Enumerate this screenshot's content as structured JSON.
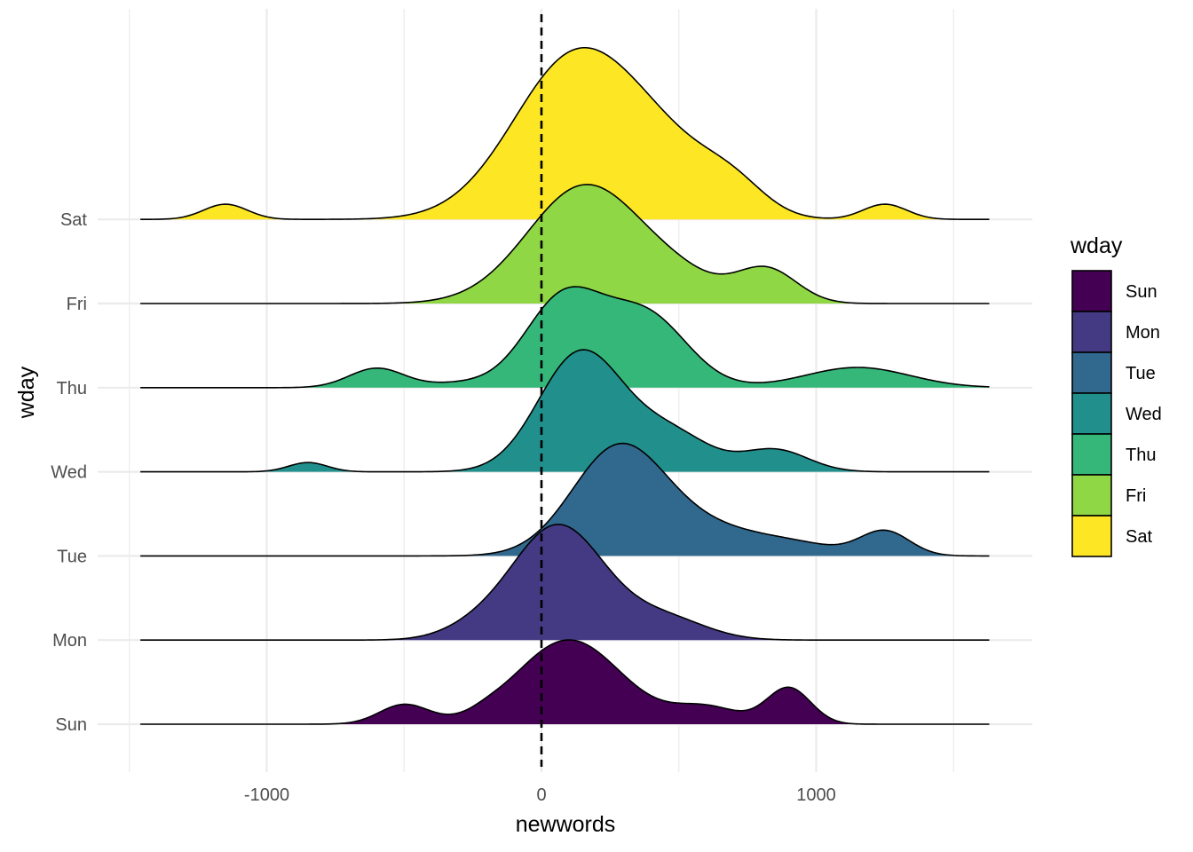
{
  "chart_data": {
    "type": "ridgeline",
    "title": "",
    "xlabel": "newwords",
    "ylabel": "wday",
    "xlim": [
      -1500,
      1600
    ],
    "x_ticks": [
      -1000,
      0,
      1000
    ],
    "x_tick_labels": [
      "-1000",
      "0",
      "1000"
    ],
    "reference_line": {
      "x": 0,
      "style": "dashed"
    },
    "legend": {
      "title": "wday",
      "position": "right"
    },
    "density_x_range": [
      -1460,
      1630
    ],
    "grid": true,
    "series": [
      {
        "name": "Sun",
        "color": "#440154",
        "peaks": [
          [
            -500,
            0.23,
            90
          ],
          [
            -200,
            0.03,
            60
          ],
          [
            100,
            1.0,
            190
          ],
          [
            600,
            0.2,
            120
          ],
          [
            900,
            0.43,
            80
          ]
        ]
      },
      {
        "name": "Mon",
        "color": "#443A83",
        "peaks": [
          [
            -250,
            0.1,
            120
          ],
          [
            60,
            1.36,
            170
          ],
          [
            450,
            0.25,
            150
          ]
        ]
      },
      {
        "name": "Tue",
        "color": "#31688E",
        "peaks": [
          [
            280,
            1.26,
            170
          ],
          [
            620,
            0.3,
            200
          ],
          [
            950,
            0.1,
            150
          ],
          [
            1250,
            0.29,
            90
          ]
        ]
      },
      {
        "name": "Wed",
        "color": "#21908C",
        "peaks": [
          [
            -850,
            0.11,
            70
          ],
          [
            80,
            0.5,
            140
          ],
          [
            180,
            1.0,
            150
          ],
          [
            480,
            0.42,
            140
          ],
          [
            850,
            0.26,
            120
          ]
        ]
      },
      {
        "name": "Thu",
        "color": "#35B779",
        "peaks": [
          [
            -600,
            0.23,
            100
          ],
          [
            -300,
            0.05,
            120
          ],
          [
            80,
            1.05,
            140
          ],
          [
            380,
            0.85,
            150
          ],
          [
            1150,
            0.24,
            190
          ]
        ]
      },
      {
        "name": "Fri",
        "color": "#8FD744",
        "peaks": [
          [
            160,
            1.4,
            210
          ],
          [
            520,
            0.2,
            150
          ],
          [
            820,
            0.4,
            110
          ]
        ]
      },
      {
        "name": "Sat",
        "color": "#FDE725",
        "peaks": [
          [
            -1150,
            0.18,
            80
          ],
          [
            130,
            1.95,
            230
          ],
          [
            480,
            0.5,
            180
          ],
          [
            700,
            0.3,
            120
          ],
          [
            1250,
            0.18,
            80
          ]
        ]
      }
    ]
  }
}
